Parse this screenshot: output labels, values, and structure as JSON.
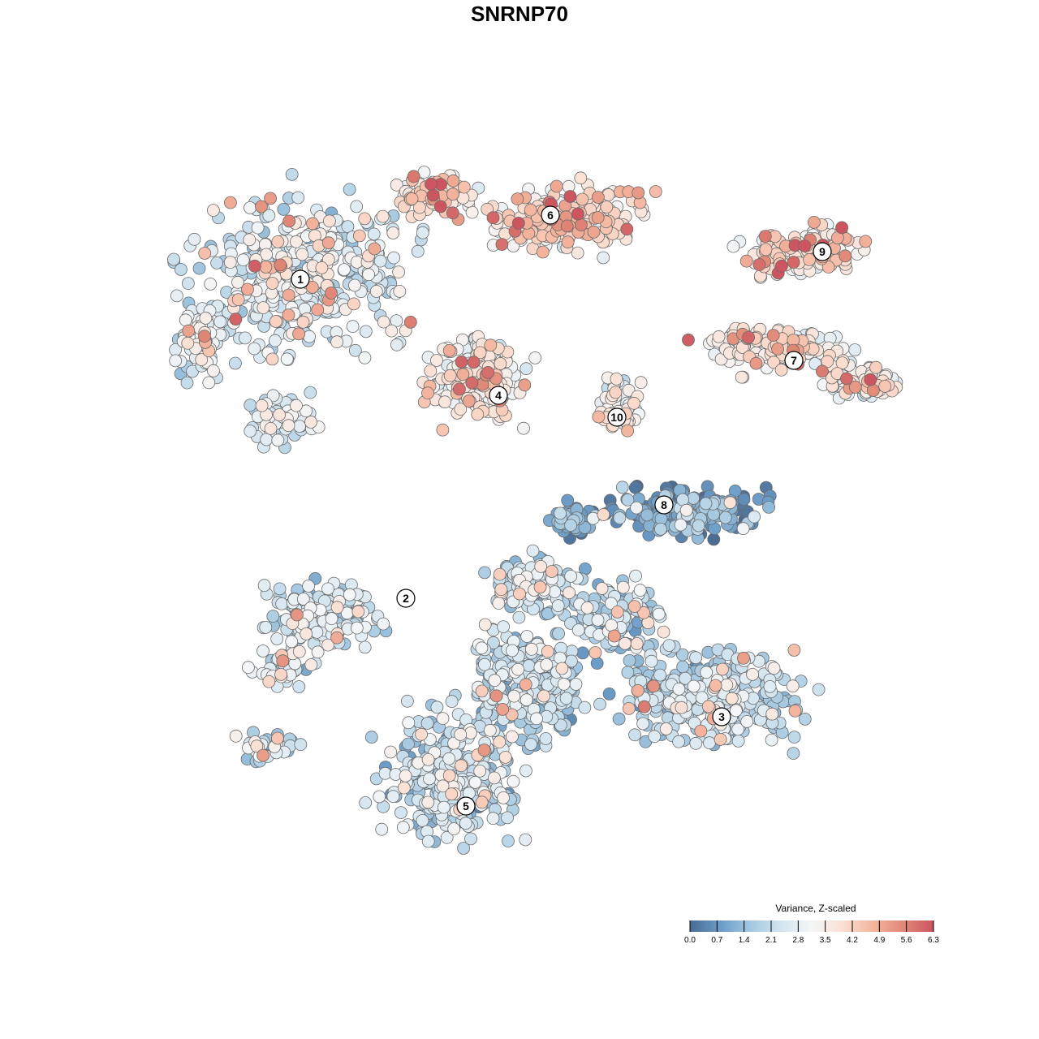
{
  "chart_data": {
    "type": "scatter",
    "title": "SNRNP70",
    "xlabel": "",
    "ylabel": "",
    "grid": false,
    "legend_placement": "bottom-right",
    "colorbar": {
      "title": "Variance, Z-scaled",
      "min": 0.0,
      "max": 6.3,
      "ticks": [
        "0.0",
        "0.7",
        "1.4",
        "2.1",
        "2.8",
        "3.5",
        "4.2",
        "4.9",
        "5.6",
        "6.3"
      ],
      "colors": [
        "#4a6b94",
        "#6a9cc7",
        "#a4c8e0",
        "#d3e5f0",
        "#f4f6f7",
        "#fbe0d3",
        "#f4b59e",
        "#e08877",
        "#cc5560"
      ]
    },
    "clusters": [
      {
        "label": "1",
        "value": 2.6
      },
      {
        "label": "2",
        "value": 2.3
      },
      {
        "label": "3",
        "value": 2.0
      },
      {
        "label": "4",
        "value": 3.4
      },
      {
        "label": "5",
        "value": 2.1
      },
      {
        "label": "6",
        "value": 3.9
      },
      {
        "label": "7",
        "value": 3.4
      },
      {
        "label": "8",
        "value": 0.8
      },
      {
        "label": "9",
        "value": 3.9
      },
      {
        "label": "10",
        "value": 3.2
      }
    ]
  }
}
